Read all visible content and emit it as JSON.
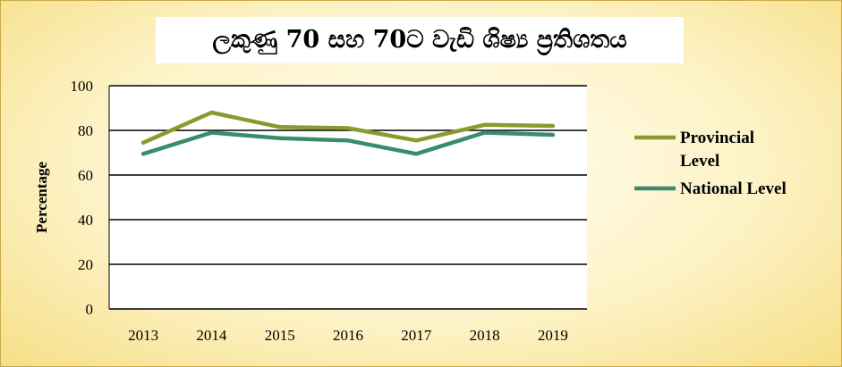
{
  "colors": {
    "provincial": "#8a9a2e",
    "national": "#3a8c6e",
    "grid": "#000000",
    "plot_bg": "#ffffff"
  },
  "chart_data": {
    "type": "line",
    "title": "ලකුණු 70 සහ 70ට වැඩි ශිෂ්‍ය ප්‍රතිශතය",
    "xlabel": "",
    "ylabel": "Percentage",
    "categories": [
      "2013",
      "2014",
      "2015",
      "2016",
      "2017",
      "2018",
      "2019"
    ],
    "ylim": [
      0,
      100
    ],
    "yticks": [
      0,
      20,
      40,
      60,
      80,
      100
    ],
    "grid": true,
    "legend_position": "right",
    "series": [
      {
        "name": "Provincial Level",
        "legend_lines": [
          "Provincial",
          "Level"
        ],
        "values": [
          74.5,
          88,
          81.5,
          81,
          75.5,
          82.5,
          82
        ]
      },
      {
        "name": "National Level",
        "legend_lines": [
          "National Level"
        ],
        "values": [
          69.5,
          79,
          76.5,
          75.5,
          69.5,
          79,
          78
        ]
      }
    ]
  }
}
